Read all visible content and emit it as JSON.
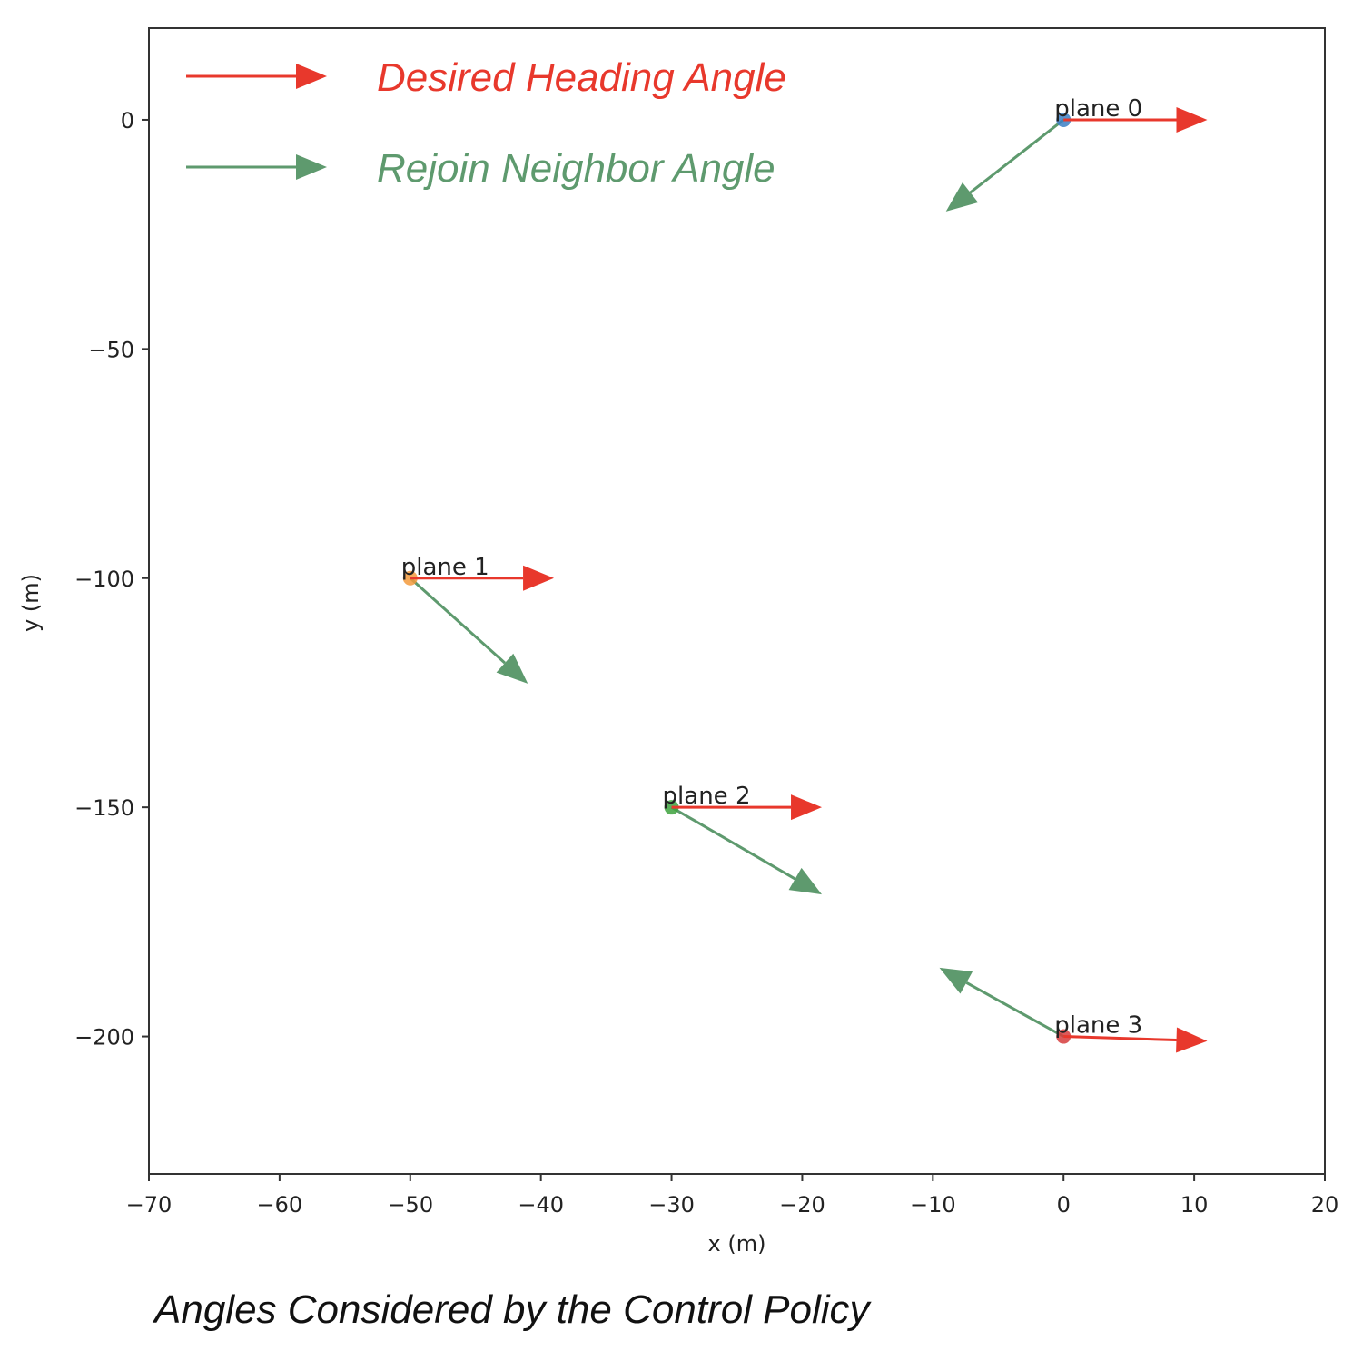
{
  "caption": "Angles Considered by the Control Policy",
  "chart_data": {
    "type": "scatter",
    "xlabel": "x (m)",
    "ylabel": "y (m)",
    "xlim": [
      -70,
      20
    ],
    "ylim": [
      -230,
      20
    ],
    "xticks": [
      -70,
      -60,
      -50,
      -40,
      -30,
      -20,
      -10,
      0,
      10,
      20
    ],
    "yticks": [
      0,
      -50,
      -100,
      -150,
      -200
    ],
    "grid": false,
    "legend_placement": "top-left",
    "legend": [
      {
        "label": "Desired Heading Angle",
        "color": "#e8382c"
      },
      {
        "label": "Rejoin Neighbor Angle",
        "color": "#5e9a6e"
      }
    ],
    "planes": [
      {
        "label": "plane 0",
        "x": 0,
        "y": 0,
        "color": "#3b7fc4",
        "heading_vector": [
          11,
          0
        ],
        "rejoin_vector": [
          -9,
          -20
        ]
      },
      {
        "label": "plane 1",
        "x": -50,
        "y": -100,
        "color": "#f39a3c",
        "heading_vector": [
          11,
          0
        ],
        "rejoin_vector": [
          9,
          -23
        ]
      },
      {
        "label": "plane 2",
        "x": -30,
        "y": -150,
        "color": "#3da23d",
        "heading_vector": [
          11.5,
          0
        ],
        "rejoin_vector": [
          11.5,
          -19
        ]
      },
      {
        "label": "plane 3",
        "x": 0,
        "y": -200,
        "color": "#d63c3c",
        "heading_vector": [
          11,
          -1
        ],
        "rejoin_vector": [
          -9.5,
          15
        ]
      }
    ]
  }
}
